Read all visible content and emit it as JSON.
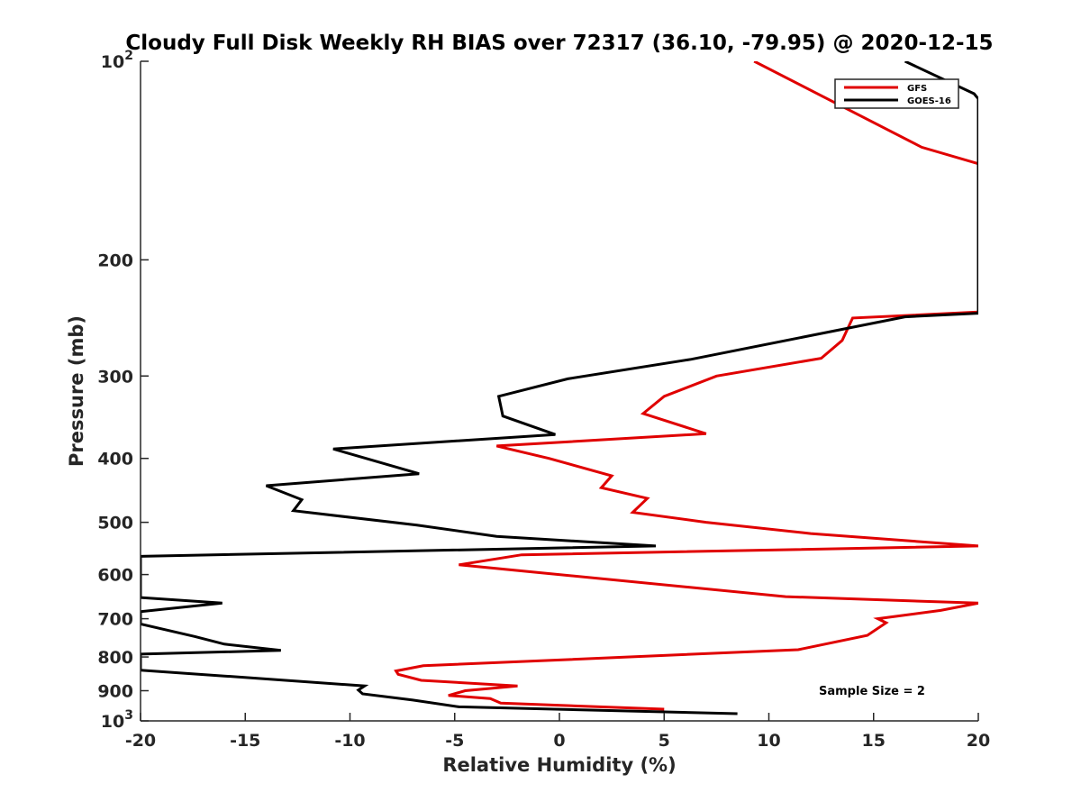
{
  "chart_data": {
    "type": "line",
    "title": "Cloudy Full Disk Weekly RH BIAS over 72317 (36.10, -79.95) @ 2020-12-15",
    "xlabel": "Relative Humidity (%)",
    "ylabel": "Pressure (mb)",
    "xlim": [
      -20,
      20
    ],
    "ylim": [
      100,
      1000
    ],
    "yscale": "log",
    "y_direction": "reversed",
    "xticks": [
      -20,
      -15,
      -10,
      -5,
      0,
      5,
      10,
      15,
      20
    ],
    "yticks": [
      {
        "value": 100,
        "label": "10",
        "exp": "2"
      },
      {
        "value": 200,
        "label": "200"
      },
      {
        "value": 300,
        "label": "300"
      },
      {
        "value": 400,
        "label": "400"
      },
      {
        "value": 500,
        "label": "500"
      },
      {
        "value": 600,
        "label": "600"
      },
      {
        "value": 700,
        "label": "700"
      },
      {
        "value": 800,
        "label": "800"
      },
      {
        "value": 900,
        "label": "900"
      },
      {
        "value": 1000,
        "label": "10",
        "exp": "3"
      }
    ],
    "grid": false,
    "legend_position": "top-right",
    "annotation": "Sample Size = 2",
    "series": [
      {
        "name": "GFS",
        "color": "#e00000",
        "points": [
          {
            "x": 9.3,
            "p": 100
          },
          {
            "x": 17.3,
            "p": 135
          },
          {
            "x": 20.0,
            "p": 143
          },
          {
            "x": 20.0,
            "p": 240
          },
          {
            "x": 14.0,
            "p": 245
          },
          {
            "x": 13.5,
            "p": 265
          },
          {
            "x": 12.5,
            "p": 282
          },
          {
            "x": 7.5,
            "p": 300
          },
          {
            "x": 5.0,
            "p": 322
          },
          {
            "x": 4.0,
            "p": 342
          },
          {
            "x": 7.0,
            "p": 367
          },
          {
            "x": -3.0,
            "p": 383
          },
          {
            "x": -0.5,
            "p": 400
          },
          {
            "x": 2.5,
            "p": 425
          },
          {
            "x": 2.0,
            "p": 443
          },
          {
            "x": 4.2,
            "p": 460
          },
          {
            "x": 3.5,
            "p": 483
          },
          {
            "x": 7.0,
            "p": 500
          },
          {
            "x": 12.0,
            "p": 520
          },
          {
            "x": 20.0,
            "p": 543
          },
          {
            "x": -1.8,
            "p": 560
          },
          {
            "x": -4.8,
            "p": 580
          },
          {
            "x": 10.8,
            "p": 648
          },
          {
            "x": 20.0,
            "p": 663
          },
          {
            "x": 18.2,
            "p": 680
          },
          {
            "x": 15.2,
            "p": 700
          },
          {
            "x": 15.6,
            "p": 710
          },
          {
            "x": 14.7,
            "p": 742
          },
          {
            "x": 11.4,
            "p": 780
          },
          {
            "x": -6.5,
            "p": 825
          },
          {
            "x": -7.8,
            "p": 840
          },
          {
            "x": -7.7,
            "p": 850
          },
          {
            "x": -6.6,
            "p": 868
          },
          {
            "x": -2.0,
            "p": 885
          },
          {
            "x": -4.5,
            "p": 900
          },
          {
            "x": -5.3,
            "p": 915
          },
          {
            "x": -3.3,
            "p": 925
          },
          {
            "x": -2.8,
            "p": 940
          },
          {
            "x": 5.0,
            "p": 960
          }
        ]
      },
      {
        "name": "GOES-16",
        "color": "#000000",
        "points": [
          {
            "x": 16.5,
            "p": 100
          },
          {
            "x": 19.8,
            "p": 112
          },
          {
            "x": 20.0,
            "p": 114
          },
          {
            "x": 20.0,
            "p": 241
          },
          {
            "x": 16.5,
            "p": 244
          },
          {
            "x": 6.3,
            "p": 283
          },
          {
            "x": 0.4,
            "p": 303
          },
          {
            "x": -2.9,
            "p": 322
          },
          {
            "x": -2.7,
            "p": 345
          },
          {
            "x": -0.2,
            "p": 368
          },
          {
            "x": -10.8,
            "p": 387
          },
          {
            "x": -6.7,
            "p": 422
          },
          {
            "x": -14.0,
            "p": 440
          },
          {
            "x": -12.3,
            "p": 462
          },
          {
            "x": -12.7,
            "p": 480
          },
          {
            "x": -6.8,
            "p": 505
          },
          {
            "x": -3.0,
            "p": 525
          },
          {
            "x": 4.6,
            "p": 543
          },
          {
            "x": -20.0,
            "p": 563
          },
          {
            "x": -20.0,
            "p": 650
          },
          {
            "x": -16.1,
            "p": 663
          },
          {
            "x": -20.0,
            "p": 683
          },
          {
            "x": -20.0,
            "p": 713
          },
          {
            "x": -17.4,
            "p": 745
          },
          {
            "x": -16.0,
            "p": 765
          },
          {
            "x": -13.3,
            "p": 782
          },
          {
            "x": -20.0,
            "p": 792
          },
          {
            "x": -20.0,
            "p": 838
          },
          {
            "x": -16.0,
            "p": 855
          },
          {
            "x": -9.3,
            "p": 885
          },
          {
            "x": -9.6,
            "p": 898
          },
          {
            "x": -9.4,
            "p": 910
          },
          {
            "x": -7.0,
            "p": 930
          },
          {
            "x": -4.8,
            "p": 952
          },
          {
            "x": 8.5,
            "p": 975
          }
        ]
      }
    ]
  }
}
